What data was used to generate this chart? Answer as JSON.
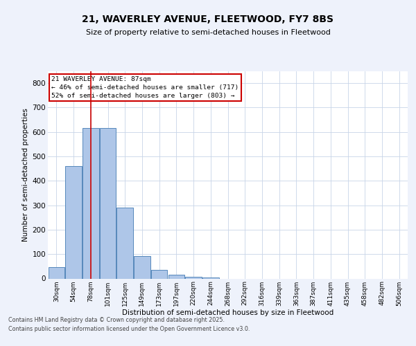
{
  "title1": "21, WAVERLEY AVENUE, FLEETWOOD, FY7 8BS",
  "title2": "Size of property relative to semi-detached houses in Fleetwood",
  "xlabel": "Distribution of semi-detached houses by size in Fleetwood",
  "ylabel": "Number of semi-detached properties",
  "categories": [
    "30sqm",
    "54sqm",
    "78sqm",
    "101sqm",
    "125sqm",
    "149sqm",
    "173sqm",
    "197sqm",
    "220sqm",
    "244sqm",
    "268sqm",
    "292sqm",
    "316sqm",
    "339sqm",
    "363sqm",
    "387sqm",
    "411sqm",
    "435sqm",
    "458sqm",
    "482sqm",
    "506sqm"
  ],
  "values": [
    46,
    460,
    617,
    617,
    290,
    93,
    36,
    17,
    8,
    5,
    0,
    0,
    0,
    0,
    0,
    0,
    0,
    0,
    0,
    0,
    0
  ],
  "bar_color": "#aec6e8",
  "bar_edge_color": "#5588bb",
  "vline_x": 2,
  "vline_color": "#cc0000",
  "ylim": [
    0,
    850
  ],
  "yticks": [
    0,
    100,
    200,
    300,
    400,
    500,
    600,
    700,
    800
  ],
  "annotation_title": "21 WAVERLEY AVENUE: 87sqm",
  "annotation_line1": "← 46% of semi-detached houses are smaller (717)",
  "annotation_line2": "52% of semi-detached houses are larger (803) →",
  "footer1": "Contains HM Land Registry data © Crown copyright and database right 2025.",
  "footer2": "Contains public sector information licensed under the Open Government Licence v3.0.",
  "bg_color": "#eef2fb",
  "plot_bg_color": "#ffffff",
  "grid_color": "#c8d4e8"
}
